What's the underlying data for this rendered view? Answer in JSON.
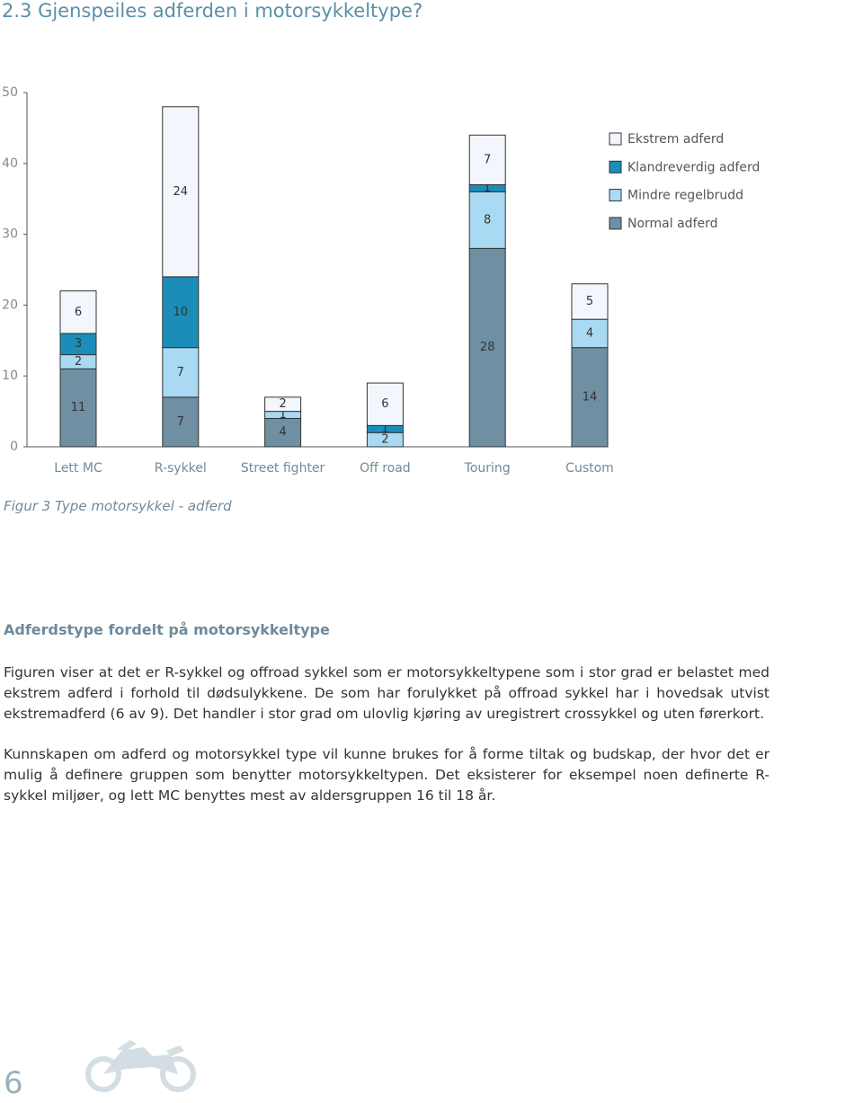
{
  "header": {
    "title": "2.3 Gjenspeiles adferden i motorsykkeltype?"
  },
  "chart_data": {
    "type": "bar",
    "stacked": true,
    "categories": [
      "Lett MC",
      "R-sykkel",
      "Street fighter",
      "Off road",
      "Touring",
      "Custom"
    ],
    "series": [
      {
        "name": "Normal adferd",
        "color": "#6f8fa3",
        "values": [
          11,
          7,
          4,
          0,
          28,
          14
        ]
      },
      {
        "name": "Mindre regelbrudd",
        "color": "#a9d9f3",
        "values": [
          2,
          7,
          1,
          2,
          8,
          4
        ]
      },
      {
        "name": "Klandreverdig adferd",
        "color": "#1b8db8",
        "values": [
          3,
          10,
          0,
          1,
          1,
          0
        ]
      },
      {
        "name": "Ekstrem adferd",
        "color": "#f3f7fd",
        "values": [
          6,
          24,
          2,
          6,
          7,
          5
        ]
      }
    ],
    "ylim": [
      0,
      50
    ],
    "yticks": [
      0,
      10,
      20,
      30,
      40,
      50
    ]
  },
  "caption": "Figur 3 Type motorsykkel - adferd",
  "section": {
    "heading": "Adferdstype fordelt på motorsykkeltype",
    "paragraphs": [
      "Figuren viser at det er R-sykkel og offroad sykkel som er motorsykkeltypene som i stor grad er belastet med ekstrem adferd i forhold til dødsulykkene. De som har forulykket på offroad sykkel har i hovedsak utvist ekstremadferd (6 av 9). Det handler i stor grad om ulovlig kjøring av uregistrert crossykkel og uten førerkort.",
      "Kunnskapen om adferd og motorsykkel type vil kunne brukes for å forme tiltak og budskap, der hvor det er mulig å definere gruppen som benytter motorsykkeltypen. Det eksisterer for eksempel noen definerte R-sykkel miljøer, og lett MC benyttes mest av aldersgruppen 16 til 18 år."
    ]
  },
  "page_number": "6"
}
